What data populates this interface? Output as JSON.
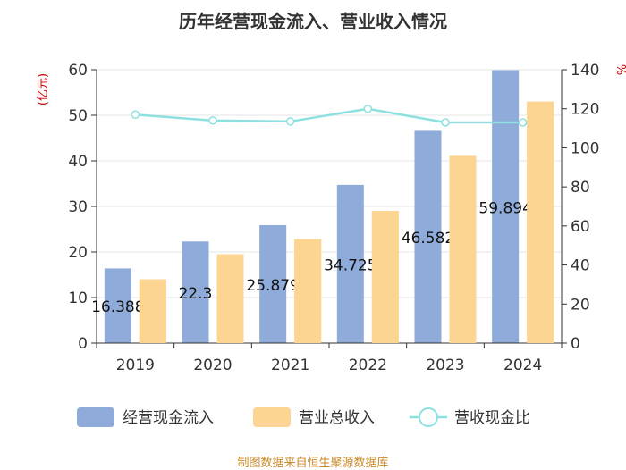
{
  "page": {
    "title": "历年经营现金流入、营业收入情况",
    "footer": "制图数据来自恒生聚源数据库"
  },
  "colors": {
    "bar1": "#8eabd9",
    "bar2": "#fdd592",
    "line": "#8ee0e0",
    "accent": "#cc0000",
    "footer": "#c98a2a"
  },
  "chart_data": {
    "type": "bar",
    "title": "历年经营现金流入、营业收入情况",
    "categories": [
      "2019",
      "2020",
      "2021",
      "2022",
      "2023",
      "2024"
    ],
    "series": [
      {
        "name": "经营现金流入",
        "axis": "left",
        "values": [
          16.388,
          22.3,
          25.879,
          34.725,
          46.582,
          59.894
        ],
        "labels": [
          "16.388",
          "22.3",
          "25.879",
          "34.725",
          "46.582",
          "59.894"
        ]
      },
      {
        "name": "营业总收入",
        "axis": "left",
        "values": [
          14.0,
          19.5,
          22.8,
          29.0,
          41.1,
          53.0
        ]
      },
      {
        "name": "营收现金比",
        "axis": "right",
        "type": "line",
        "values": [
          117,
          114,
          113.5,
          120,
          113,
          113
        ]
      }
    ],
    "y_left": {
      "label": "(亿元)",
      "min": 0,
      "max": 60,
      "ticks": [
        0,
        10,
        20,
        30,
        40,
        50,
        60
      ]
    },
    "y_right": {
      "label": "%",
      "min": 0,
      "max": 140,
      "ticks": [
        0,
        20,
        40,
        60,
        80,
        100,
        120,
        140
      ]
    },
    "grid": true,
    "legend": "bottom"
  }
}
